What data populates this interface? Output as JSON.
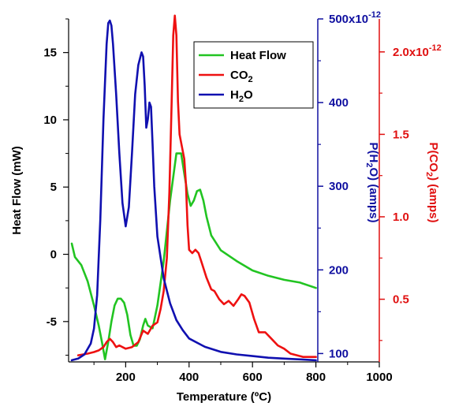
{
  "chart_data": {
    "type": "line",
    "x_axis": {
      "label": "Temperature (ºC)",
      "min": 20,
      "max": 1000,
      "ticks": [
        200,
        400,
        600,
        800,
        1000
      ],
      "tick_labels": [
        "200",
        "400",
        "600",
        "800",
        "1000"
      ]
    },
    "y_left": {
      "label": "Heat Flow (mW)",
      "min": -8,
      "max": 17.5,
      "ticks": [
        -5,
        0,
        5,
        10,
        15
      ],
      "tick_labels": [
        "-5",
        "0",
        "5",
        "10",
        "15"
      ],
      "color": "#000000"
    },
    "y_right1": {
      "label_main": "P(H",
      "label_sub": "2",
      "label_end": "O) (amps)",
      "min": 90,
      "max": 500,
      "ticks": [
        100,
        200,
        300,
        400,
        500
      ],
      "tick_labels": [
        "100",
        "200",
        "300",
        "400",
        "500x10"
      ],
      "tick_label_sup": "-12",
      "color": "#1010a0"
    },
    "y_right2": {
      "label_main": "P(CO",
      "label_sub": "2",
      "label_end": ") (amps)",
      "min": 0.12,
      "max": 2.2,
      "ticks": [
        0.5,
        1.0,
        1.5,
        2.0
      ],
      "tick_labels": [
        "0.5",
        "1.0",
        "1.5",
        "2.0x10"
      ],
      "tick_label_sup": "-12",
      "color": "#e01010"
    },
    "legend": {
      "position": "top-right",
      "entries": [
        {
          "main": "Heat Flow",
          "sub": "",
          "color": "#22c422"
        },
        {
          "main": "CO",
          "sub": "2",
          "color": "#ee1111"
        },
        {
          "main": "H",
          "sub": "2",
          "end": "O",
          "color": "#1010b0"
        }
      ]
    },
    "series": [
      {
        "name": "Heat Flow",
        "axis": "left",
        "color": "#22c422",
        "x": [
          30,
          40,
          60,
          80,
          100,
          115,
          125,
          135,
          145,
          155,
          165,
          175,
          185,
          195,
          205,
          215,
          225,
          235,
          245,
          255,
          262,
          270,
          285,
          300,
          320,
          340,
          360,
          375,
          385,
          395,
          405,
          415,
          425,
          435,
          445,
          455,
          470,
          500,
          550,
          600,
          650,
          700,
          750,
          800
        ],
        "y": [
          0.8,
          -0.2,
          -0.8,
          -2.0,
          -3.8,
          -5.3,
          -6.5,
          -7.8,
          -6.5,
          -5.0,
          -3.8,
          -3.3,
          -3.3,
          -3.6,
          -4.5,
          -6.0,
          -6.8,
          -6.8,
          -6.3,
          -5.3,
          -4.8,
          -5.3,
          -5.5,
          -3.8,
          -0.5,
          4.0,
          7.5,
          7.5,
          6.0,
          4.5,
          3.6,
          4.0,
          4.7,
          4.8,
          4.0,
          2.8,
          1.4,
          0.3,
          -0.5,
          -1.2,
          -1.6,
          -1.9,
          -2.1,
          -2.5
        ]
      },
      {
        "name": "CO2",
        "axis": "right2",
        "color": "#ee1111",
        "x": [
          50,
          80,
          100,
          115,
          130,
          140,
          150,
          160,
          170,
          180,
          200,
          220,
          240,
          255,
          270,
          285,
          300,
          310,
          320,
          330,
          338,
          345,
          350,
          355,
          360,
          365,
          370,
          375,
          380,
          385,
          390,
          395,
          400,
          410,
          420,
          430,
          440,
          455,
          470,
          480,
          495,
          510,
          525,
          540,
          555,
          565,
          575,
          590,
          605,
          620,
          640,
          660,
          680,
          700,
          720,
          740,
          760,
          780,
          800
        ],
        "y": [
          0.16,
          0.17,
          0.18,
          0.19,
          0.21,
          0.24,
          0.26,
          0.24,
          0.21,
          0.22,
          0.2,
          0.21,
          0.24,
          0.31,
          0.29,
          0.34,
          0.36,
          0.44,
          0.55,
          0.75,
          1.15,
          1.7,
          2.1,
          2.22,
          2.1,
          1.7,
          1.5,
          1.45,
          1.4,
          1.35,
          1.2,
          0.95,
          0.8,
          0.78,
          0.8,
          0.78,
          0.72,
          0.63,
          0.56,
          0.55,
          0.5,
          0.47,
          0.49,
          0.46,
          0.5,
          0.53,
          0.52,
          0.48,
          0.38,
          0.3,
          0.3,
          0.26,
          0.22,
          0.2,
          0.17,
          0.16,
          0.15,
          0.15,
          0.15
        ]
      },
      {
        "name": "H2O",
        "axis": "right1",
        "color": "#1010b0",
        "x": [
          30,
          50,
          70,
          90,
          100,
          110,
          120,
          130,
          140,
          145,
          150,
          155,
          160,
          170,
          180,
          190,
          200,
          210,
          220,
          230,
          240,
          250,
          255,
          260,
          265,
          270,
          275,
          280,
          285,
          290,
          300,
          320,
          340,
          360,
          380,
          400,
          450,
          500,
          550,
          600,
          650,
          700,
          750,
          800
        ],
        "y": [
          92,
          94,
          99,
          112,
          130,
          170,
          260,
          380,
          470,
          495,
          498,
          492,
          470,
          410,
          340,
          280,
          252,
          275,
          340,
          410,
          445,
          460,
          455,
          420,
          370,
          380,
          400,
          395,
          350,
          300,
          240,
          190,
          160,
          140,
          128,
          118,
          108,
          102,
          99,
          97,
          95,
          94,
          93,
          92
        ]
      }
    ]
  }
}
